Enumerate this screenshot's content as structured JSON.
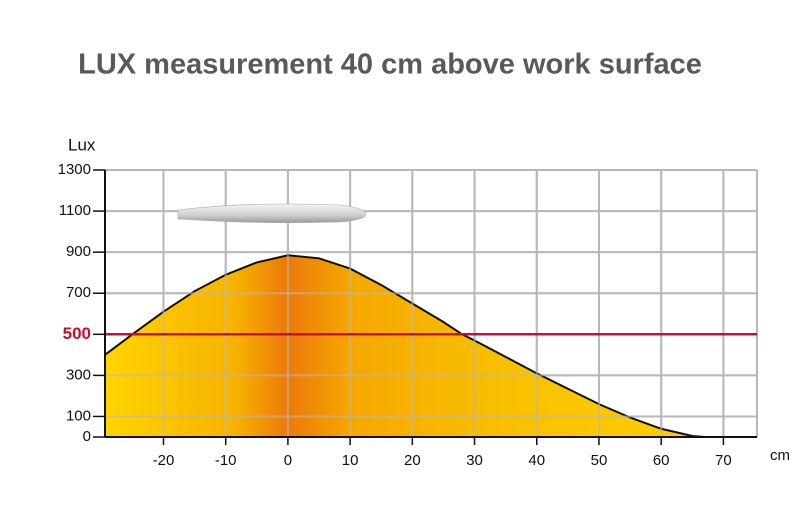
{
  "chart_data": {
    "type": "area",
    "title": "LUX measurement 40 cm above work surface",
    "y_label": "Lux",
    "x_label": "cm",
    "x": [
      -29.4,
      -25,
      -20,
      -15,
      -10,
      -5,
      0,
      5,
      10,
      15,
      20,
      25,
      28,
      30,
      35,
      40,
      45,
      50,
      55,
      60,
      65,
      67
    ],
    "series": [
      {
        "name": "Lux",
        "color": "#f5b800",
        "values": [
          400,
          500,
          610,
          710,
          790,
          850,
          885,
          870,
          820,
          740,
          650,
          560,
          500,
          470,
          390,
          310,
          235,
          160,
          95,
          40,
          5,
          0
        ]
      }
    ],
    "reference_line": {
      "value": 500,
      "color": "#c8102e"
    },
    "xlim": [
      -29.4,
      75.4
    ],
    "ylim": [
      0,
      1300
    ],
    "xticks": [
      -20,
      -10,
      0,
      10,
      20,
      30,
      40,
      50,
      60,
      70
    ],
    "yticks": [
      0,
      100,
      300,
      500,
      700,
      900,
      1100,
      1300
    ],
    "grid": true
  }
}
